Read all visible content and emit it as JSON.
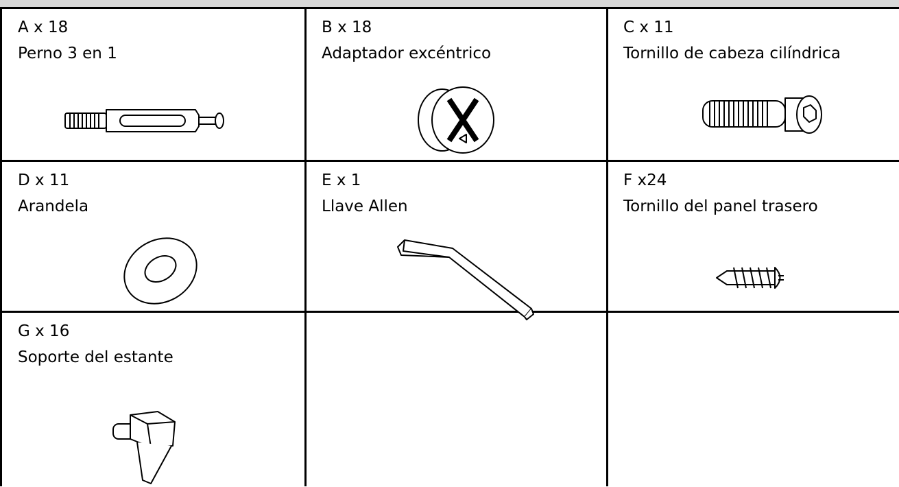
{
  "parts": [
    {
      "code": "A x 18",
      "name": "Perno 3 en 1"
    },
    {
      "code": "B x 18",
      "name": "Adaptador excéntrico"
    },
    {
      "code": "C x 11",
      "name": "Tornillo de cabeza cilíndrica"
    },
    {
      "code": "D x 11",
      "name": "Arandela"
    },
    {
      "code": "E x 1",
      "name": "Llave Allen"
    },
    {
      "code": "F x24",
      "name": "Tornillo del panel trasero"
    },
    {
      "code": "G x 16",
      "name": "Soporte del estante"
    }
  ]
}
